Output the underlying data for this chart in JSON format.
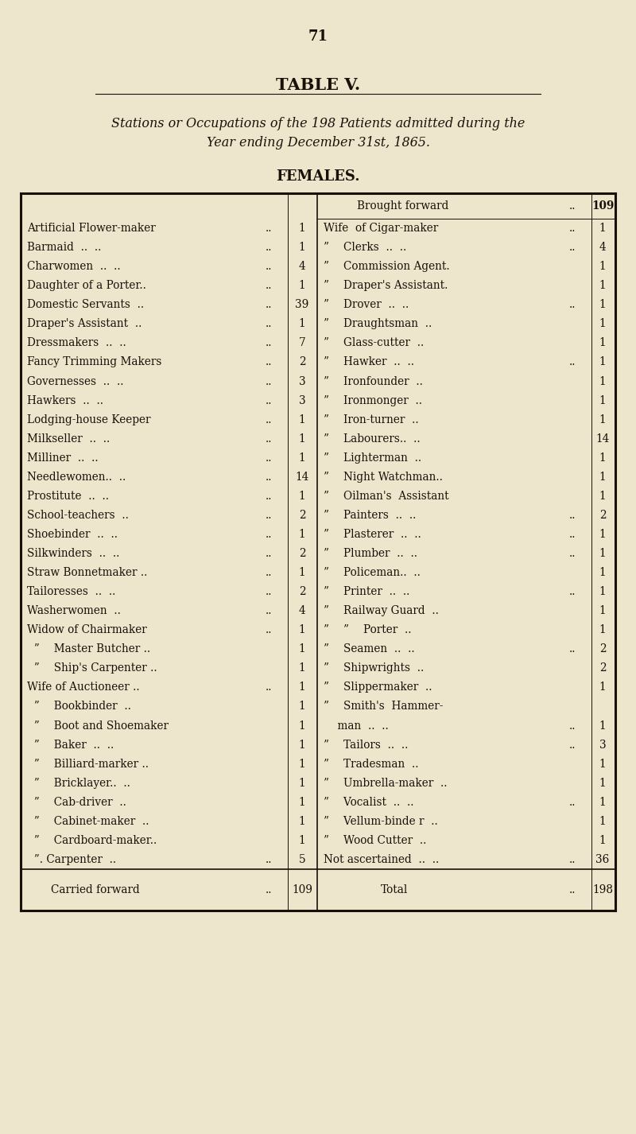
{
  "page_number": "71",
  "table_title": "TABLE V.",
  "subtitle_line1": "Stations or Occupations of the 198 Patients admitted during the",
  "subtitle_line2": "Year ending December 31st, 1865.",
  "section_header": "FEMALES.",
  "bg_color": "#ede5cc",
  "text_color": "#1a1008",
  "left_rows": [
    {
      "label": "Artificial Flower-maker",
      "dots": "..",
      "num": "1"
    },
    {
      "label": "Barmaid  ..  ..",
      "dots": "..",
      "num": "1"
    },
    {
      "label": "Charwomen  ..  ..",
      "dots": "..",
      "num": "4"
    },
    {
      "label": "Daughter of a Porter..",
      "dots": "..",
      "num": "1"
    },
    {
      "label": "Domestic Servants  ..",
      "dots": "..",
      "num": "39"
    },
    {
      "label": "Draper's Assistant  ..",
      "dots": "..",
      "num": "1"
    },
    {
      "label": "Dressmakers  ..  ..",
      "dots": "..",
      "num": "7"
    },
    {
      "label": "Fancy Trimming Makers",
      "dots": "..",
      "num": "2"
    },
    {
      "label": "Governesses  ..  ..",
      "dots": "..",
      "num": "3"
    },
    {
      "label": "Hawkers  ..  ..",
      "dots": "..",
      "num": "3"
    },
    {
      "label": "Lodging-house Keeper",
      "dots": "..",
      "num": "1"
    },
    {
      "label": "Milkseller  ..  ..",
      "dots": "..",
      "num": "1"
    },
    {
      "label": "Milliner  ..  ..",
      "dots": "..",
      "num": "1"
    },
    {
      "label": "Needlewomen..  ..",
      "dots": "..",
      "num": "14"
    },
    {
      "label": "Prostitute  ..  ..",
      "dots": "..",
      "num": "1"
    },
    {
      "label": "School-teachers  ..",
      "dots": "..",
      "num": "2"
    },
    {
      "label": "Shoebinder  ..  ..",
      "dots": "..",
      "num": "1"
    },
    {
      "label": "Silkwinders  ..  ..",
      "dots": "..",
      "num": "2"
    },
    {
      "label": "Straw Bonnetmaker ..",
      "dots": "..",
      "num": "1"
    },
    {
      "label": "Tailoresses  ..  ..",
      "dots": "..",
      "num": "2"
    },
    {
      "label": "Washerwomen  ..",
      "dots": "..",
      "num": "4"
    },
    {
      "label": "Widow of Chairmaker",
      "dots": "..",
      "num": "1"
    },
    {
      "label": "  ”  Master Butcher ..",
      "dots": "",
      "num": "1"
    },
    {
      "label": "  ”  Ship's Carpenter ..",
      "dots": "",
      "num": "1"
    },
    {
      "label": "Wife of Auctioneer ..",
      "dots": "..",
      "num": "1"
    },
    {
      "label": "  ”  Bookbinder  ..",
      "dots": "",
      "num": "1"
    },
    {
      "label": "  ”  Boot and Shoemaker",
      "dots": "",
      "num": "1"
    },
    {
      "label": "  ”  Baker  ..  ..",
      "dots": "",
      "num": "1"
    },
    {
      "label": "  ”  Billiard-marker ..",
      "dots": "",
      "num": "1"
    },
    {
      "label": "  ”  Bricklayer..  ..",
      "dots": "",
      "num": "1"
    },
    {
      "label": "  ”  Cab-driver  ..",
      "dots": "",
      "num": "1"
    },
    {
      "label": "  ”  Cabinet-maker  ..",
      "dots": "",
      "num": "1"
    },
    {
      "label": "  ”  Cardboard-maker..",
      "dots": "",
      "num": "1"
    },
    {
      "label": "  ”. Carpenter  ..",
      "dots": "..",
      "num": "5"
    }
  ],
  "left_footer_label": "Carried forward",
  "left_footer_num": "109",
  "right_header_label": "Brought forward",
  "right_header_num": "109",
  "right_rows": [
    {
      "label": "Wife  of Cigar-maker",
      "dots": "..",
      "num": "1"
    },
    {
      "label": "”  Clerks  ..  ..",
      "dots": "..",
      "num": "4"
    },
    {
      "label": "”  Commission Agent.",
      "dots": "",
      "num": "1"
    },
    {
      "label": "”  Draper's Assistant.",
      "dots": "",
      "num": "1"
    },
    {
      "label": "”  Drover  ..  ..",
      "dots": "..",
      "num": "1"
    },
    {
      "label": "”  Draughtsman  ..",
      "dots": "",
      "num": "1"
    },
    {
      "label": "”  Glass-cutter  ..",
      "dots": "",
      "num": "1"
    },
    {
      "label": "”  Hawker  ..  ..",
      "dots": "..",
      "num": "1"
    },
    {
      "label": "”  Ironfounder  ..",
      "dots": "",
      "num": "1"
    },
    {
      "label": "”  Ironmonger  ..",
      "dots": "",
      "num": "1"
    },
    {
      "label": "”  Iron-turner  ..",
      "dots": "",
      "num": "1"
    },
    {
      "label": "”  Labourers..  ..",
      "dots": "",
      "num": "14"
    },
    {
      "label": "”  Lighterman  ..",
      "dots": "",
      "num": "1"
    },
    {
      "label": "”  Night Watchman..",
      "dots": "",
      "num": "1"
    },
    {
      "label": "”  Oilman's  Assistant",
      "dots": "",
      "num": "1"
    },
    {
      "label": "”  Painters  ..  ..",
      "dots": "..",
      "num": "2"
    },
    {
      "label": "”  Plasterer  ..  ..",
      "dots": "..",
      "num": "1"
    },
    {
      "label": "”  Plumber  ..  ..",
      "dots": "..",
      "num": "1"
    },
    {
      "label": "”  Policeman..  ..",
      "dots": "",
      "num": "1"
    },
    {
      "label": "”  Printer  ..  ..",
      "dots": "..",
      "num": "1"
    },
    {
      "label": "”  Railway Guard  ..",
      "dots": "",
      "num": "1"
    },
    {
      "label": "”  ”  Porter  ..",
      "dots": "",
      "num": "1"
    },
    {
      "label": "”  Seamen  ..  ..",
      "dots": "..",
      "num": "2"
    },
    {
      "label": "”  Shipwrights  ..",
      "dots": "",
      "num": "2"
    },
    {
      "label": "”  Slippermaker  ..",
      "dots": "",
      "num": "1"
    },
    {
      "label": "”  Smith's  Hammer-",
      "dots": "",
      "num": ""
    },
    {
      "label": "    man  ..  ..",
      "dots": "..",
      "num": "1"
    },
    {
      "label": "”  Tailors  ..  ..",
      "dots": "..",
      "num": "3"
    },
    {
      "label": "”  Tradesman  ..",
      "dots": "",
      "num": "1"
    },
    {
      "label": "”  Umbrella-maker  ..",
      "dots": "",
      "num": "1"
    },
    {
      "label": "”  Vocalist  ..  ..",
      "dots": "..",
      "num": "1"
    },
    {
      "label": "”  Vellum-binde r  ..",
      "dots": "",
      "num": "1"
    },
    {
      "label": "”  Wood Cutter  ..",
      "dots": "",
      "num": "1"
    },
    {
      "label": "Not ascertained  ..  ..",
      "dots": "..",
      "num": "36"
    }
  ],
  "right_footer_label": "Total",
  "right_footer_num": "198"
}
